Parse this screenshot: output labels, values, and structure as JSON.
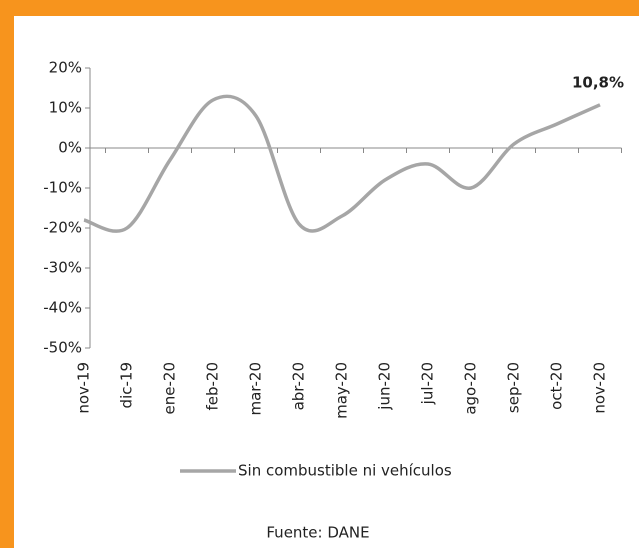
{
  "chart_data": {
    "type": "line",
    "categories": [
      "nov-19",
      "dic-19",
      "ene-20",
      "feb-20",
      "mar-20",
      "abr-20",
      "may-20",
      "jun-20",
      "jul-20",
      "ago-20",
      "sep-20",
      "oct-20",
      "nov-20"
    ],
    "series": [
      {
        "name": "Sin combustible ni vehículos",
        "color": "#a6a6a6",
        "values": [
          -18,
          -20,
          -3,
          12,
          8,
          -19,
          -17,
          -8,
          -4,
          -10,
          1,
          6,
          10.8
        ],
        "value_labels": [
          null,
          null,
          null,
          null,
          null,
          null,
          null,
          null,
          null,
          null,
          null,
          null,
          "10,8%"
        ]
      }
    ],
    "ylim": [
      -50,
      20
    ],
    "yticks": [
      {
        "value": -50,
        "label": "-50%"
      },
      {
        "value": -40,
        "label": "-40%"
      },
      {
        "value": -30,
        "label": "-30%"
      },
      {
        "value": -20,
        "label": "-20%"
      },
      {
        "value": -10,
        "label": "-10%"
      },
      {
        "value": 0,
        "label": "0%"
      },
      {
        "value": 10,
        "label": "10%"
      },
      {
        "value": 20,
        "label": "20%"
      }
    ],
    "source": "Fuente: DANE"
  }
}
